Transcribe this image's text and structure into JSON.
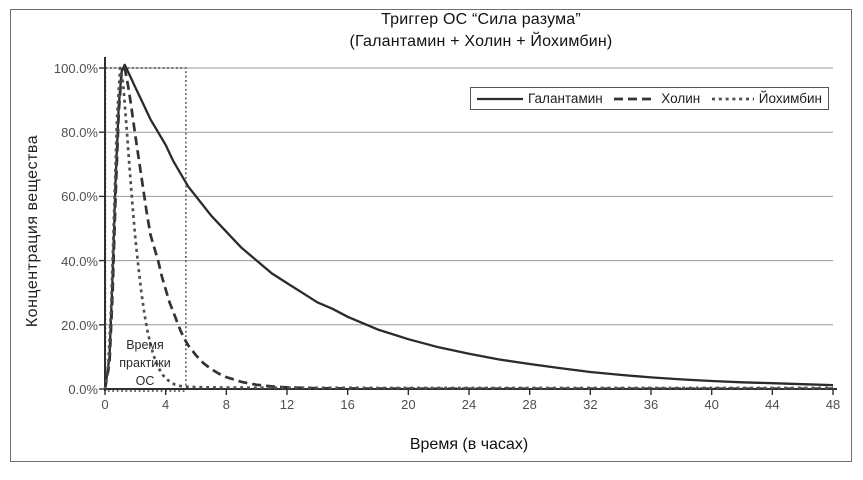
{
  "title": {
    "line1": "Триггер ОС “Сила разума”",
    "line2": "(Галантамин + Холин + Йохимбин)"
  },
  "axes": {
    "y_label": "Концентрация вещества",
    "x_label": "Время (в часах)"
  },
  "annotation": {
    "line1": "Время",
    "line2": "практики",
    "line3": "ОС"
  },
  "legend": {
    "position": "top-right",
    "items": [
      {
        "label": "Галантамин",
        "dash": "solid"
      },
      {
        "label": "Холин",
        "dash": "long-dash"
      },
      {
        "label": "Йохимбин",
        "dash": "short-dash"
      }
    ]
  },
  "colors": {
    "background": "#ffffff",
    "frame_border": "#6e6e6e",
    "grid": "#9a9a9a",
    "axis": "#2f2f2f",
    "annotation_box": "#3f3f3f",
    "tick_label": "#4f4f4f",
    "series": {
      "Галантамин": "#2b2b2b",
      "Холин": "#333333",
      "Йохимбин": "#4f4f4f"
    }
  },
  "chart_data": {
    "type": "line",
    "title": "Триггер ОС “Сила разума”",
    "subtitle": "(Галантамин + Холин + Йохимбин)",
    "xlabel": "Время (в часах)",
    "ylabel": "Концентрация вещества",
    "xlim": [
      0,
      48
    ],
    "ylim": [
      0,
      100
    ],
    "x_ticks": [
      0,
      4,
      8,
      12,
      16,
      20,
      24,
      28,
      32,
      36,
      40,
      44,
      48
    ],
    "y_tick_values": [
      0,
      20,
      40,
      60,
      80,
      100
    ],
    "y_tick_labels": [
      "0.0%",
      "20.0%",
      "40.0%",
      "60.0%",
      "80.0%",
      "100.0%"
    ],
    "grid": "horizontal",
    "legend_position": "top-right",
    "annotation_box": {
      "label": "Время практики ОС",
      "x_range": [
        0,
        5.3
      ],
      "y_range": [
        0,
        100
      ],
      "style": "dotted"
    },
    "series": [
      {
        "name": "Галантамин",
        "dash": "solid",
        "points": [
          [
            0,
            0
          ],
          [
            0.3,
            10
          ],
          [
            0.5,
            35
          ],
          [
            0.7,
            65
          ],
          [
            0.9,
            88
          ],
          [
            1.1,
            99
          ],
          [
            1.3,
            101
          ],
          [
            1.6,
            98
          ],
          [
            2,
            94
          ],
          [
            2.5,
            89
          ],
          [
            3,
            84
          ],
          [
            3.5,
            80
          ],
          [
            4,
            76
          ],
          [
            4.5,
            71
          ],
          [
            5,
            67
          ],
          [
            5.5,
            63
          ],
          [
            6,
            60
          ],
          [
            7,
            54
          ],
          [
            8,
            49
          ],
          [
            9,
            44
          ],
          [
            10,
            40
          ],
          [
            11,
            36
          ],
          [
            12,
            33
          ],
          [
            13,
            30
          ],
          [
            14,
            27
          ],
          [
            15,
            25
          ],
          [
            16,
            22.5
          ],
          [
            17,
            20.5
          ],
          [
            18,
            18.5
          ],
          [
            19,
            17
          ],
          [
            20,
            15.5
          ],
          [
            22,
            13
          ],
          [
            24,
            11
          ],
          [
            26,
            9.2
          ],
          [
            28,
            7.8
          ],
          [
            30,
            6.5
          ],
          [
            32,
            5.3
          ],
          [
            34,
            4.4
          ],
          [
            36,
            3.6
          ],
          [
            38,
            3
          ],
          [
            40,
            2.5
          ],
          [
            42,
            2.1
          ],
          [
            44,
            1.8
          ],
          [
            46,
            1.5
          ],
          [
            48,
            1.2
          ]
        ]
      },
      {
        "name": "Холин",
        "dash": "long-dash",
        "points": [
          [
            0,
            0
          ],
          [
            0.3,
            8
          ],
          [
            0.5,
            30
          ],
          [
            0.7,
            60
          ],
          [
            0.9,
            86
          ],
          [
            1.1,
            99
          ],
          [
            1.3,
            100
          ],
          [
            1.5,
            95
          ],
          [
            1.7,
            89
          ],
          [
            2,
            79
          ],
          [
            2.25,
            71
          ],
          [
            2.5,
            63
          ],
          [
            2.75,
            55
          ],
          [
            3,
            48
          ],
          [
            3.25,
            44
          ],
          [
            3.5,
            40
          ],
          [
            3.75,
            35
          ],
          [
            4,
            31
          ],
          [
            4.25,
            27
          ],
          [
            4.5,
            24
          ],
          [
            4.75,
            21
          ],
          [
            5,
            18
          ],
          [
            5.25,
            15.5
          ],
          [
            5.5,
            13.5
          ],
          [
            6,
            10.5
          ],
          [
            6.5,
            8
          ],
          [
            7,
            6.2
          ],
          [
            7.5,
            4.8
          ],
          [
            8,
            3.7
          ],
          [
            9,
            2.2
          ],
          [
            10,
            1.3
          ],
          [
            11,
            0.8
          ],
          [
            12,
            0.5
          ],
          [
            14,
            0.25
          ],
          [
            16,
            0.15
          ],
          [
            20,
            0.1
          ],
          [
            24,
            0.1
          ],
          [
            32,
            0.1
          ],
          [
            48,
            0.1
          ]
        ]
      },
      {
        "name": "Йохимбин",
        "dash": "short-dash",
        "points": [
          [
            0,
            0
          ],
          [
            0.2,
            6
          ],
          [
            0.4,
            25
          ],
          [
            0.6,
            55
          ],
          [
            0.8,
            85
          ],
          [
            1,
            100
          ],
          [
            1.2,
            95
          ],
          [
            1.4,
            83
          ],
          [
            1.6,
            70
          ],
          [
            1.8,
            58
          ],
          [
            2,
            47
          ],
          [
            2.2,
            38
          ],
          [
            2.4,
            30
          ],
          [
            2.6,
            23.5
          ],
          [
            2.8,
            18
          ],
          [
            3,
            14
          ],
          [
            3.2,
            10.5
          ],
          [
            3.4,
            8
          ],
          [
            3.6,
            6
          ],
          [
            3.8,
            4.5
          ],
          [
            4,
            3.3
          ],
          [
            4.3,
            2.2
          ],
          [
            4.6,
            1.4
          ],
          [
            5,
            0.9
          ],
          [
            5.5,
            0.7
          ],
          [
            6,
            0.6
          ],
          [
            7,
            0.5
          ],
          [
            8,
            0.45
          ],
          [
            10,
            0.4
          ],
          [
            12,
            0.4
          ],
          [
            16,
            0.35
          ],
          [
            24,
            0.3
          ],
          [
            36,
            0.3
          ],
          [
            48,
            0.3
          ]
        ]
      }
    ]
  }
}
